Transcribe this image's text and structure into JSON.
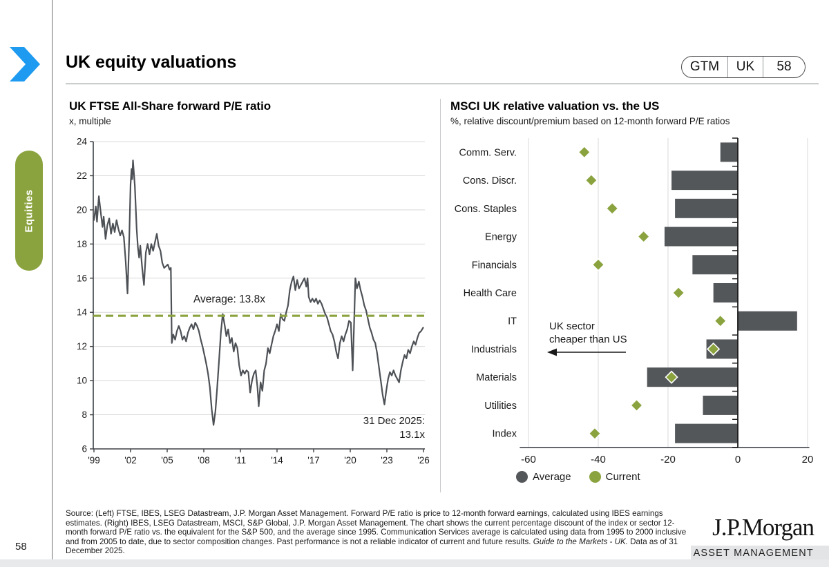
{
  "page": {
    "title": "UK equity valuations",
    "slide_tags": [
      "GTM",
      "UK",
      "58"
    ],
    "sidebar_label": "Equities",
    "page_number": "58",
    "logo": {
      "brand": "J.P.Morgan",
      "sub": "ASSET MANAGEMENT"
    },
    "accent_blue": "#1e9bf0",
    "accent_green": "#8ba33e"
  },
  "left_chart": {
    "title": "UK FTSE All-Share forward P/E ratio",
    "subtitle": "x, multiple",
    "average_label": "Average: 13.8x",
    "callout_line1": "31 Dec 2025:",
    "callout_line2": "13.1x"
  },
  "right_chart": {
    "title": "MSCI UK relative valuation vs. the US",
    "subtitle": "%, relative discount/premium based on 12-month forward P/E ratios",
    "annotation_line1": "UK sector",
    "annotation_line2": "cheaper than US",
    "legend": [
      {
        "label": "Average",
        "color": "#54575a"
      },
      {
        "label": "Current",
        "color": "#8ba33e"
      }
    ]
  },
  "footer": {
    "text_main": "Source: (Left) FTSE, IBES, LSEG Datastream, J.P. Morgan Asset Management. Forward P/E ratio is price to 12-month forward earnings, calculated using IBES earnings estimates. (Right) IBES, LSEG Datastream, MSCI, S&P Global, J.P. Morgan Asset Management. The chart shows the current percentage discount of the index or sector 12-month forward P/E ratio vs. the equivalent for the S&P 500, and the average since 1995. Communication Services average is calculated using data from 1995 to 2000 inclusive and from 2005 to date, due to sector composition changes. Past performance is not a reliable indicator of current and future results. ",
    "italic": "Guide to the Markets - UK.",
    "text_end": " Data as of 31 December 2025."
  },
  "chart_data": [
    {
      "type": "line",
      "title": "UK FTSE All-Share forward P/E ratio",
      "ylabel": "x, multiple",
      "xlim": [
        1999,
        2026
      ],
      "ylim": [
        6,
        24
      ],
      "ytick_step": 2,
      "xticks": [
        1999,
        2002,
        2005,
        2008,
        2011,
        2014,
        2017,
        2020,
        2023,
        2026
      ],
      "xtick_labels": [
        "'99",
        "'02",
        "'05",
        "'08",
        "'11",
        "'14",
        "'17",
        "'20",
        "'23",
        "'26"
      ],
      "grid": true,
      "line_color": "#4d5156",
      "average": 13.8,
      "average_color": "#8ba33e",
      "last_point": {
        "date": "31 Dec 2025",
        "value": 13.1
      },
      "points": [
        [
          1999.0,
          19.4
        ],
        [
          1999.15,
          20.2
        ],
        [
          1999.25,
          19.3
        ],
        [
          1999.4,
          20.8
        ],
        [
          1999.55,
          19.9
        ],
        [
          1999.7,
          19.0
        ],
        [
          1999.8,
          19.6
        ],
        [
          1999.95,
          18.3
        ],
        [
          2000.1,
          19.1
        ],
        [
          2000.25,
          19.5
        ],
        [
          2000.4,
          18.6
        ],
        [
          2000.55,
          19.2
        ],
        [
          2000.7,
          18.7
        ],
        [
          2000.85,
          19.4
        ],
        [
          2001.0,
          18.9
        ],
        [
          2001.15,
          18.5
        ],
        [
          2001.3,
          18.8
        ],
        [
          2001.45,
          18.4
        ],
        [
          2001.6,
          17.0
        ],
        [
          2001.75,
          15.1
        ],
        [
          2001.9,
          18.5
        ],
        [
          2002.0,
          21.5
        ],
        [
          2002.08,
          22.4
        ],
        [
          2002.13,
          21.8
        ],
        [
          2002.2,
          22.9
        ],
        [
          2002.35,
          21.4
        ],
        [
          2002.5,
          18.9
        ],
        [
          2002.6,
          17.8
        ],
        [
          2002.7,
          17.2
        ],
        [
          2002.8,
          17.9
        ],
        [
          2002.95,
          16.6
        ],
        [
          2003.1,
          15.6
        ],
        [
          2003.25,
          17.5
        ],
        [
          2003.4,
          18.0
        ],
        [
          2003.55,
          17.4
        ],
        [
          2003.7,
          18.0
        ],
        [
          2003.85,
          17.6
        ],
        [
          2004.0,
          18.1
        ],
        [
          2004.15,
          18.6
        ],
        [
          2004.3,
          17.9
        ],
        [
          2004.45,
          17.6
        ],
        [
          2004.6,
          16.9
        ],
        [
          2004.75,
          16.6
        ],
        [
          2004.9,
          16.7
        ],
        [
          2005.05,
          16.8
        ],
        [
          2005.2,
          16.5
        ],
        [
          2005.3,
          16.6
        ],
        [
          2005.38,
          12.2
        ],
        [
          2005.5,
          12.7
        ],
        [
          2005.65,
          12.4
        ],
        [
          2005.8,
          12.9
        ],
        [
          2005.95,
          13.2
        ],
        [
          2006.1,
          12.9
        ],
        [
          2006.25,
          12.4
        ],
        [
          2006.4,
          12.6
        ],
        [
          2006.55,
          12.3
        ],
        [
          2006.7,
          12.8
        ],
        [
          2006.85,
          13.1
        ],
        [
          2007.0,
          13.3
        ],
        [
          2007.15,
          13.0
        ],
        [
          2007.3,
          13.4
        ],
        [
          2007.45,
          13.2
        ],
        [
          2007.6,
          12.9
        ],
        [
          2007.75,
          12.4
        ],
        [
          2007.9,
          12.0
        ],
        [
          2008.05,
          11.5
        ],
        [
          2008.2,
          11.0
        ],
        [
          2008.35,
          10.4
        ],
        [
          2008.5,
          9.6
        ],
        [
          2008.65,
          8.3
        ],
        [
          2008.8,
          7.4
        ],
        [
          2008.95,
          8.2
        ],
        [
          2009.1,
          9.6
        ],
        [
          2009.25,
          11.2
        ],
        [
          2009.4,
          12.8
        ],
        [
          2009.55,
          13.9
        ],
        [
          2009.7,
          13.3
        ],
        [
          2009.85,
          12.6
        ],
        [
          2010.0,
          13.0
        ],
        [
          2010.15,
          12.2
        ],
        [
          2010.3,
          12.5
        ],
        [
          2010.45,
          11.7
        ],
        [
          2010.6,
          12.2
        ],
        [
          2010.75,
          11.9
        ],
        [
          2010.9,
          10.9
        ],
        [
          2011.05,
          10.3
        ],
        [
          2011.2,
          10.6
        ],
        [
          2011.35,
          10.4
        ],
        [
          2011.5,
          10.6
        ],
        [
          2011.65,
          10.5
        ],
        [
          2011.8,
          9.3
        ],
        [
          2011.95,
          10.0
        ],
        [
          2012.1,
          10.4
        ],
        [
          2012.25,
          10.6
        ],
        [
          2012.4,
          9.6
        ],
        [
          2012.5,
          8.5
        ],
        [
          2012.65,
          9.9
        ],
        [
          2012.8,
          9.4
        ],
        [
          2012.95,
          10.6
        ],
        [
          2013.1,
          11.0
        ],
        [
          2013.25,
          11.9
        ],
        [
          2013.4,
          11.6
        ],
        [
          2013.55,
          12.1
        ],
        [
          2013.7,
          12.6
        ],
        [
          2013.85,
          12.9
        ],
        [
          2014.0,
          13.3
        ],
        [
          2014.15,
          12.9
        ],
        [
          2014.3,
          13.9
        ],
        [
          2014.45,
          13.6
        ],
        [
          2014.6,
          13.5
        ],
        [
          2014.75,
          14.0
        ],
        [
          2014.9,
          14.4
        ],
        [
          2015.05,
          15.3
        ],
        [
          2015.2,
          15.8
        ],
        [
          2015.35,
          16.1
        ],
        [
          2015.5,
          15.3
        ],
        [
          2015.65,
          15.9
        ],
        [
          2015.8,
          15.4
        ],
        [
          2015.95,
          15.6
        ],
        [
          2016.1,
          15.8
        ],
        [
          2016.25,
          16.0
        ],
        [
          2016.4,
          15.5
        ],
        [
          2016.5,
          16.0
        ],
        [
          2016.6,
          14.9
        ],
        [
          2016.75,
          14.6
        ],
        [
          2016.9,
          14.8
        ],
        [
          2017.05,
          14.6
        ],
        [
          2017.2,
          14.8
        ],
        [
          2017.35,
          14.5
        ],
        [
          2017.5,
          14.7
        ],
        [
          2017.65,
          14.5
        ],
        [
          2017.8,
          14.2
        ],
        [
          2017.95,
          13.9
        ],
        [
          2018.1,
          13.7
        ],
        [
          2018.25,
          13.3
        ],
        [
          2018.4,
          12.9
        ],
        [
          2018.55,
          12.7
        ],
        [
          2018.7,
          12.3
        ],
        [
          2018.85,
          11.7
        ],
        [
          2019.0,
          11.3
        ],
        [
          2019.15,
          12.2
        ],
        [
          2019.3,
          12.6
        ],
        [
          2019.45,
          12.3
        ],
        [
          2019.6,
          12.7
        ],
        [
          2019.75,
          13.0
        ],
        [
          2019.9,
          13.5
        ],
        [
          2020.05,
          13.4
        ],
        [
          2020.2,
          10.6
        ],
        [
          2020.3,
          13.0
        ],
        [
          2020.42,
          16.0
        ],
        [
          2020.55,
          15.4
        ],
        [
          2020.7,
          15.8
        ],
        [
          2020.85,
          15.3
        ],
        [
          2021.0,
          14.9
        ],
        [
          2021.15,
          14.4
        ],
        [
          2021.3,
          14.1
        ],
        [
          2021.45,
          13.6
        ],
        [
          2021.6,
          13.1
        ],
        [
          2021.75,
          12.8
        ],
        [
          2021.9,
          12.4
        ],
        [
          2022.05,
          12.2
        ],
        [
          2022.2,
          11.6
        ],
        [
          2022.35,
          10.8
        ],
        [
          2022.5,
          10.0
        ],
        [
          2022.65,
          9.2
        ],
        [
          2022.8,
          8.6
        ],
        [
          2022.95,
          9.4
        ],
        [
          2023.1,
          10.1
        ],
        [
          2023.25,
          10.5
        ],
        [
          2023.4,
          10.3
        ],
        [
          2023.55,
          10.6
        ],
        [
          2023.7,
          10.3
        ],
        [
          2023.85,
          10.1
        ],
        [
          2024.0,
          9.9
        ],
        [
          2024.15,
          10.6
        ],
        [
          2024.3,
          11.1
        ],
        [
          2024.45,
          11.5
        ],
        [
          2024.6,
          11.3
        ],
        [
          2024.75,
          11.8
        ],
        [
          2024.9,
          11.6
        ],
        [
          2025.05,
          12.0
        ],
        [
          2025.2,
          12.3
        ],
        [
          2025.35,
          12.1
        ],
        [
          2025.5,
          12.5
        ],
        [
          2025.65,
          12.8
        ],
        [
          2025.8,
          12.9
        ],
        [
          2025.97,
          13.1
        ]
      ]
    },
    {
      "type": "bar",
      "orientation": "horizontal",
      "title": "MSCI UK relative valuation vs. the US",
      "xlabel": "%, relative discount/premium based on 12-month forward P/E ratios",
      "xlim": [
        -60,
        20
      ],
      "xticks": [
        -60,
        -40,
        -20,
        0,
        20
      ],
      "grid": true,
      "legend_position": "bottom",
      "bar_color": "#54575a",
      "marker_color": "#8ba33e",
      "categories": [
        "Comm. Serv.",
        "Cons. Discr.",
        "Cons. Staples",
        "Energy",
        "Financials",
        "Health Care",
        "IT",
        "Industrials",
        "Materials",
        "Utilities",
        "Index"
      ],
      "series": [
        {
          "name": "Average",
          "style": "bar",
          "values": [
            -5,
            -19,
            -18,
            -21,
            -13,
            -7,
            17,
            -9,
            -26,
            -10,
            -18
          ]
        },
        {
          "name": "Current",
          "style": "diamond",
          "values": [
            -44,
            -42,
            -36,
            -27,
            -40,
            -17,
            -5,
            -7,
            -19,
            -29,
            -41
          ]
        }
      ]
    }
  ]
}
